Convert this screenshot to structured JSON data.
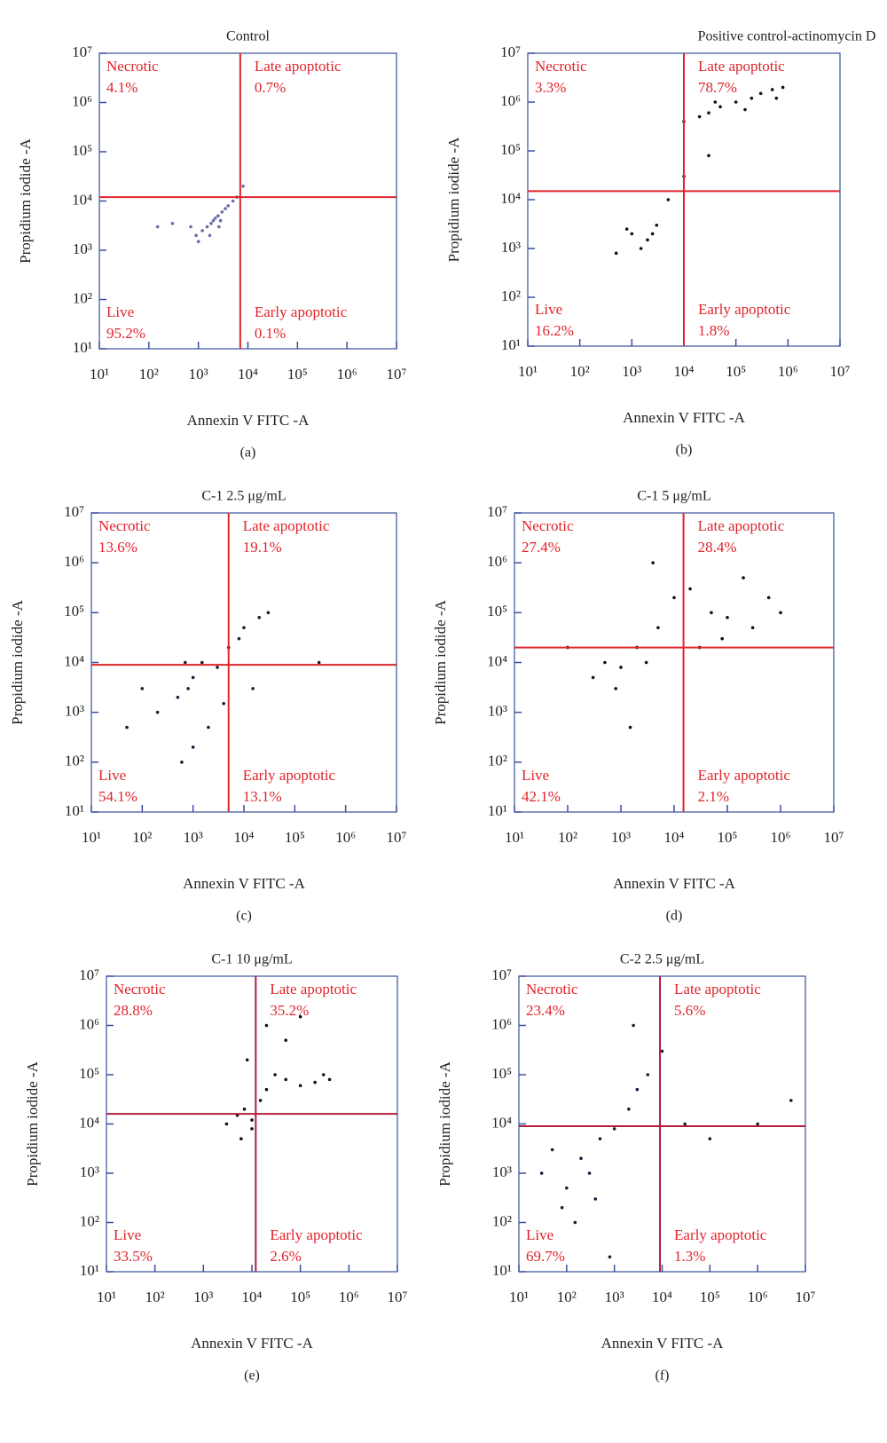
{
  "chart_data": [
    {
      "type": "scatter",
      "title": "Control",
      "x_label": "Annexin V FITC -A",
      "y_label": "Propidium iodide -A",
      "caption": "(a)",
      "log_scale": true,
      "xlim": [
        10,
        10000000
      ],
      "ylim": [
        10,
        10000000
      ],
      "xticks": [
        {
          "value": 10,
          "label": "10¹"
        },
        {
          "value": 100,
          "label": "10²"
        },
        {
          "value": 1000,
          "label": "10³"
        },
        {
          "value": 10000,
          "label": "10⁴"
        },
        {
          "value": 100000,
          "label": "10⁵"
        },
        {
          "value": 1000000,
          "label": "10⁶"
        },
        {
          "value": 10000000,
          "label": "10⁷"
        }
      ],
      "yticks": [
        {
          "value": 10,
          "label": "10¹"
        },
        {
          "value": 100,
          "label": "10²"
        },
        {
          "value": 1000,
          "label": "10³"
        },
        {
          "value": 10000,
          "label": "10⁴"
        },
        {
          "value": 100000,
          "label": "10⁵"
        },
        {
          "value": 1000000,
          "label": "10⁶"
        },
        {
          "value": 10000000,
          "label": "10⁷"
        }
      ],
      "gate_x": 7000,
      "gate_y": 12000,
      "gate_color": "#e0242b",
      "label_color": "#e0242b",
      "color": "#6a6aa8",
      "quadrants": {
        "names": [
          "Necrotic",
          "Late apoptotic",
          "Live",
          "Early apoptotic"
        ],
        "values": [
          4.1,
          0.7,
          95.2,
          0.1
        ],
        "value_labels": [
          "4.1%",
          "0.7%",
          "95.2%",
          "0.1%"
        ]
      },
      "x": [
        1500,
        2000,
        2500,
        3000,
        1200,
        1800,
        2200,
        3500,
        4000,
        5000,
        900,
        700,
        300,
        150,
        2600,
        1700,
        6000,
        8000,
        1000,
        2800
      ],
      "y": [
        3000,
        4000,
        5000,
        6000,
        2500,
        3500,
        4500,
        7000,
        8000,
        10000,
        2000,
        3000,
        3500,
        3000,
        3000,
        2000,
        12000,
        20000,
        1500,
        4000
      ]
    },
    {
      "type": "scatter",
      "title": "Positive control-actinomycin D",
      "x_label": "Annexin V FITC -A",
      "y_label": "Propidium iodide -A",
      "caption": "(b)",
      "log_scale": true,
      "xlim": [
        10,
        10000000
      ],
      "ylim": [
        10,
        10000000
      ],
      "xticks": [
        {
          "value": 10,
          "label": "10¹"
        },
        {
          "value": 100,
          "label": "10²"
        },
        {
          "value": 1000,
          "label": "10³"
        },
        {
          "value": 10000,
          "label": "10⁴"
        },
        {
          "value": 100000,
          "label": "10⁵"
        },
        {
          "value": 1000000,
          "label": "10⁶"
        },
        {
          "value": 10000000,
          "label": "10⁷"
        }
      ],
      "yticks": [
        {
          "value": 10,
          "label": "10¹"
        },
        {
          "value": 100,
          "label": "10²"
        },
        {
          "value": 1000,
          "label": "10³"
        },
        {
          "value": 10000,
          "label": "10⁴"
        },
        {
          "value": 100000,
          "label": "10⁵"
        },
        {
          "value": 1000000,
          "label": "10⁶"
        },
        {
          "value": 10000000,
          "label": "10⁷"
        }
      ],
      "gate_x": 10000,
      "gate_y": 15000,
      "gate_color": "#e0242b",
      "label_color": "#e0242b",
      "color": "#111111",
      "quadrants": {
        "names": [
          "Necrotic",
          "Late apoptotic",
          "Live",
          "Early apoptotic"
        ],
        "values": [
          3.3,
          78.7,
          16.2,
          1.8
        ],
        "value_labels": [
          "3.3%",
          "78.7%",
          "16.2%",
          "1.8%"
        ]
      },
      "x": [
        20000,
        30000,
        50000,
        100000,
        200000,
        300000,
        500000,
        800000,
        10000,
        40000,
        150000,
        600000,
        1000,
        2000,
        3000,
        500,
        800,
        5000,
        1500,
        2500,
        10000,
        30000
      ],
      "y": [
        500000,
        600000,
        800000,
        1000000,
        1200000,
        1500000,
        1800000,
        2000000,
        400000,
        1000000,
        700000,
        1200000,
        2000,
        1500,
        3000,
        800,
        2500,
        10000,
        1000,
        2000,
        30000,
        80000
      ]
    },
    {
      "type": "scatter",
      "title": "C-1 2.5 μg/mL",
      "x_label": "Annexin V FITC -A",
      "y_label": "Propidium iodide -A",
      "caption": "(c)",
      "log_scale": true,
      "xlim": [
        10,
        10000000
      ],
      "ylim": [
        10,
        10000000
      ],
      "xticks": [
        {
          "value": 10,
          "label": "10¹"
        },
        {
          "value": 100,
          "label": "10²"
        },
        {
          "value": 1000,
          "label": "10³"
        },
        {
          "value": 10000,
          "label": "10⁴"
        },
        {
          "value": 100000,
          "label": "10⁵"
        },
        {
          "value": 1000000,
          "label": "10⁶"
        },
        {
          "value": 10000000,
          "label": "10⁷"
        }
      ],
      "yticks": [
        {
          "value": 10,
          "label": "10¹"
        },
        {
          "value": 100,
          "label": "10²"
        },
        {
          "value": 1000,
          "label": "10³"
        },
        {
          "value": 10000,
          "label": "10⁴"
        },
        {
          "value": 100000,
          "label": "10⁵"
        },
        {
          "value": 1000000,
          "label": "10⁶"
        },
        {
          "value": 10000000,
          "label": "10⁷"
        }
      ],
      "gate_x": 5000,
      "gate_y": 9000,
      "gate_color": "#e0242b",
      "label_color": "#e0242b",
      "color": "#1a1a3a",
      "quadrants": {
        "names": [
          "Necrotic",
          "Late apoptotic",
          "Live",
          "Early apoptotic"
        ],
        "values": [
          13.6,
          19.1,
          54.1,
          13.1
        ],
        "value_labels": [
          "13.6%",
          "19.1%",
          "54.1%",
          "13.1%"
        ]
      },
      "x": [
        500,
        800,
        1000,
        1500,
        2000,
        3000,
        5000,
        8000,
        10000,
        20000,
        30000,
        200,
        100,
        50,
        300000,
        1000,
        600,
        4000,
        15000,
        700
      ],
      "y": [
        2000,
        3000,
        5000,
        10000,
        500,
        8000,
        20000,
        30000,
        50000,
        80000,
        100000,
        1000,
        3000,
        500,
        10000,
        200,
        100,
        1500,
        3000,
        10000
      ]
    },
    {
      "type": "scatter",
      "title": "C-1 5 μg/mL",
      "x_label": "Annexin V FITC -A",
      "y_label": "Propidium iodide -A",
      "caption": "(d)",
      "log_scale": true,
      "xlim": [
        10,
        10000000
      ],
      "ylim": [
        10,
        10000000
      ],
      "xticks": [
        {
          "value": 10,
          "label": "10¹"
        },
        {
          "value": 100,
          "label": "10²"
        },
        {
          "value": 1000,
          "label": "10³"
        },
        {
          "value": 10000,
          "label": "10⁴"
        },
        {
          "value": 100000,
          "label": "10⁵"
        },
        {
          "value": 1000000,
          "label": "10⁶"
        },
        {
          "value": 10000000,
          "label": "10⁷"
        }
      ],
      "yticks": [
        {
          "value": 10,
          "label": "10¹"
        },
        {
          "value": 100,
          "label": "10²"
        },
        {
          "value": 1000,
          "label": "10³"
        },
        {
          "value": 10000,
          "label": "10⁴"
        },
        {
          "value": 100000,
          "label": "10⁵"
        },
        {
          "value": 1000000,
          "label": "10⁶"
        },
        {
          "value": 10000000,
          "label": "10⁷"
        }
      ],
      "gate_x": 15000,
      "gate_y": 20000,
      "gate_color": "#e0242b",
      "label_color": "#e0242b",
      "color": "#111111",
      "quadrants": {
        "names": [
          "Necrotic",
          "Late apoptotic",
          "Live",
          "Early apoptotic"
        ],
        "values": [
          27.4,
          28.4,
          42.1,
          2.1
        ],
        "value_labels": [
          "27.4%",
          "28.4%",
          "42.1%",
          "2.1%"
        ]
      },
      "x": [
        300,
        500,
        1000,
        2000,
        3000,
        5000,
        10000,
        20000,
        50000,
        100000,
        300000,
        600000,
        1000000,
        200000,
        800,
        1500,
        4000,
        30000,
        100,
        80000
      ],
      "y": [
        5000,
        10000,
        8000,
        20000,
        10000,
        50000,
        200000,
        300000,
        100000,
        80000,
        50000,
        200000,
        100000,
        500000,
        3000,
        500,
        1000000,
        20000,
        20000,
        30000
      ]
    },
    {
      "type": "scatter",
      "title": "C-1 10 μg/mL",
      "x_label": "Annexin V FITC -A",
      "y_label": "Propidium iodide -A",
      "caption": "(e)",
      "log_scale": true,
      "xlim": [
        10,
        10000000
      ],
      "ylim": [
        10,
        10000000
      ],
      "xticks": [
        {
          "value": 10,
          "label": "10¹"
        },
        {
          "value": 100,
          "label": "10²"
        },
        {
          "value": 1000,
          "label": "10³"
        },
        {
          "value": 10000,
          "label": "10⁴"
        },
        {
          "value": 100000,
          "label": "10⁵"
        },
        {
          "value": 1000000,
          "label": "10⁶"
        },
        {
          "value": 10000000,
          "label": "10⁷"
        }
      ],
      "yticks": [
        {
          "value": 10,
          "label": "10¹"
        },
        {
          "value": 100,
          "label": "10²"
        },
        {
          "value": 1000,
          "label": "10³"
        },
        {
          "value": 10000,
          "label": "10⁴"
        },
        {
          "value": 100000,
          "label": "10⁵"
        },
        {
          "value": 1000000,
          "label": "10⁶"
        },
        {
          "value": 10000000,
          "label": "10⁷"
        }
      ],
      "gate_x": 12000,
      "gate_y": 16000,
      "gate_color": "#b01e3c",
      "label_color": "#e0242b",
      "color": "#111111",
      "quadrants": {
        "names": [
          "Necrotic",
          "Late apoptotic",
          "Live",
          "Early apoptotic"
        ],
        "values": [
          28.8,
          35.2,
          33.5,
          2.6
        ],
        "value_labels": [
          "28.8%",
          "35.2%",
          "33.5%",
          "2.6%"
        ]
      },
      "x": [
        3000,
        5000,
        7000,
        10000,
        15000,
        20000,
        30000,
        50000,
        100000,
        200000,
        400000,
        10000,
        8000,
        6000,
        20000,
        50000,
        300000,
        100000
      ],
      "y": [
        10000,
        15000,
        20000,
        12000,
        30000,
        50000,
        100000,
        80000,
        60000,
        70000,
        80000,
        8000,
        200000,
        5000,
        1000000,
        500000,
        100000,
        1500000
      ]
    },
    {
      "type": "scatter",
      "title": "C-2 2.5 μg/mL",
      "x_label": "Annexin V FITC -A",
      "y_label": "Propidium iodide -A",
      "caption": "(f)",
      "log_scale": true,
      "xlim": [
        10,
        10000000
      ],
      "ylim": [
        10,
        10000000
      ],
      "xticks": [
        {
          "value": 10,
          "label": "10¹"
        },
        {
          "value": 100,
          "label": "10²"
        },
        {
          "value": 1000,
          "label": "10³"
        },
        {
          "value": 10000,
          "label": "10⁴"
        },
        {
          "value": 100000,
          "label": "10⁵"
        },
        {
          "value": 1000000,
          "label": "10⁶"
        },
        {
          "value": 10000000,
          "label": "10⁷"
        }
      ],
      "yticks": [
        {
          "value": 10,
          "label": "10¹"
        },
        {
          "value": 100,
          "label": "10²"
        },
        {
          "value": 1000,
          "label": "10³"
        },
        {
          "value": 10000,
          "label": "10⁴"
        },
        {
          "value": 100000,
          "label": "10⁵"
        },
        {
          "value": 1000000,
          "label": "10⁶"
        },
        {
          "value": 10000000,
          "label": "10⁷"
        }
      ],
      "gate_x": 9000,
      "gate_y": 9000,
      "gate_color": "#b01e3c",
      "label_color": "#e0242b",
      "color": "#1a1a3a",
      "quadrants": {
        "names": [
          "Necrotic",
          "Late apoptotic",
          "Live",
          "Early apoptotic"
        ],
        "values": [
          23.4,
          5.6,
          69.7,
          1.3
        ],
        "value_labels": [
          "23.4%",
          "5.6%",
          "69.7%",
          "1.3%"
        ]
      },
      "x": [
        30,
        50,
        100,
        200,
        300,
        500,
        1000,
        2000,
        3000,
        5000,
        10000,
        30000,
        100000,
        1000000,
        5000000,
        80,
        150,
        400,
        800,
        2500
      ],
      "y": [
        1000,
        3000,
        500,
        2000,
        1000,
        5000,
        8000,
        20000,
        50000,
        100000,
        300000,
        10000,
        5000,
        10000,
        30000,
        200,
        100,
        300,
        20,
        1000000
      ]
    }
  ]
}
